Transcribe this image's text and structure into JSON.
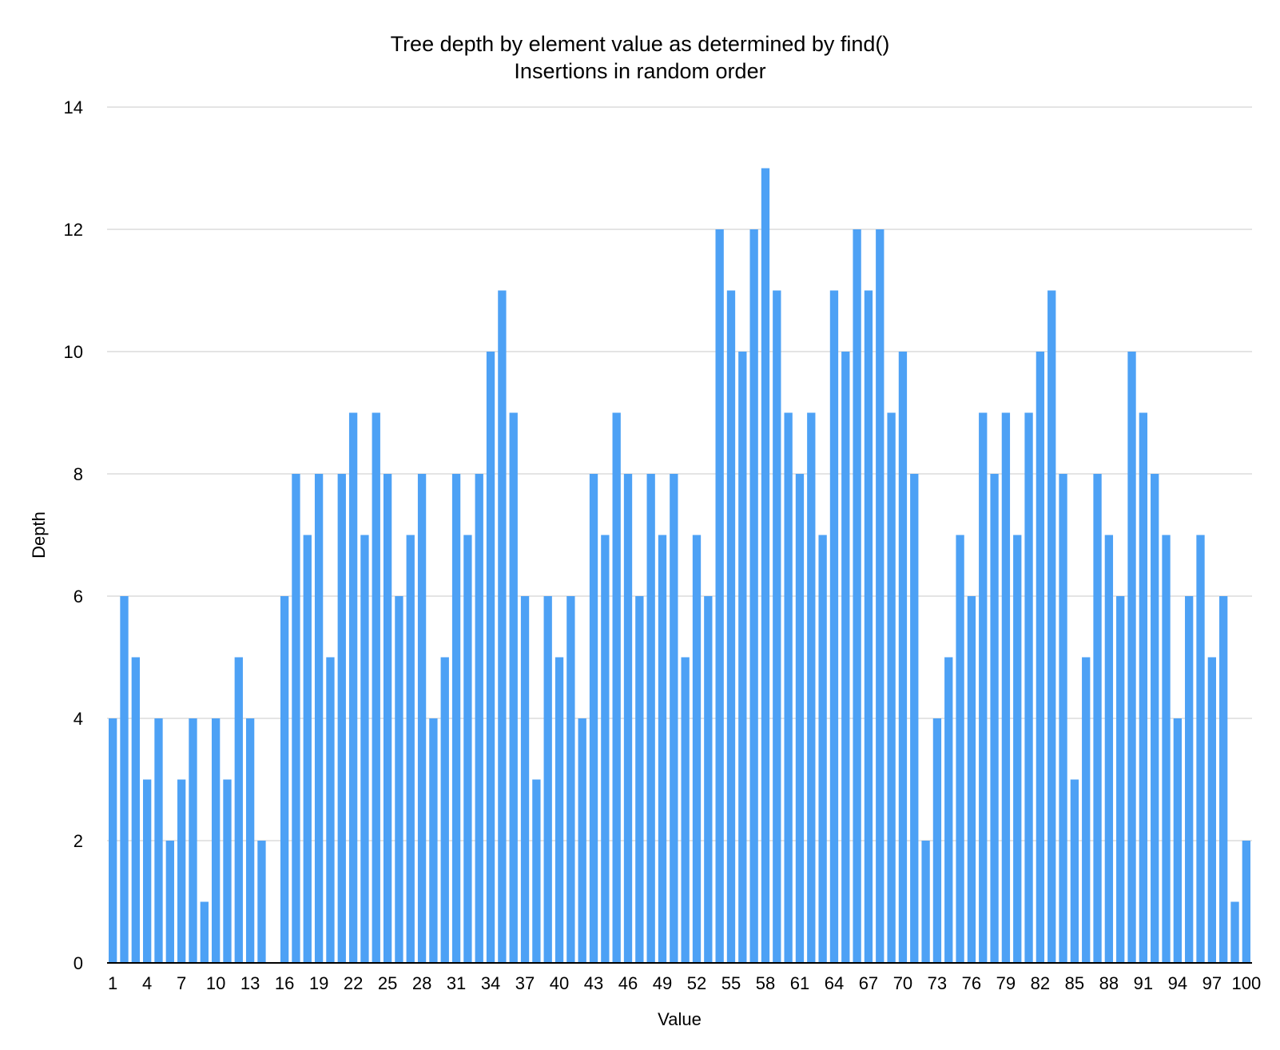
{
  "chart_data": {
    "type": "bar",
    "title": "Tree depth by element value as determined by find()",
    "subtitle": "Insertions in random order",
    "xlabel": "Value",
    "ylabel": "Depth",
    "ylim": [
      0,
      14
    ],
    "yticks": [
      0,
      2,
      4,
      6,
      8,
      10,
      12,
      14
    ],
    "xtick_labels": [
      1,
      4,
      7,
      10,
      13,
      16,
      19,
      22,
      25,
      28,
      31,
      34,
      37,
      40,
      43,
      46,
      49,
      52,
      55,
      58,
      61,
      64,
      67,
      70,
      73,
      76,
      79,
      82,
      85,
      88,
      91,
      94,
      97,
      100
    ],
    "grid": true,
    "bar_color": "#4da1f5",
    "categories": [
      1,
      2,
      3,
      4,
      5,
      6,
      7,
      8,
      9,
      10,
      11,
      12,
      13,
      14,
      15,
      16,
      17,
      18,
      19,
      20,
      21,
      22,
      23,
      24,
      25,
      26,
      27,
      28,
      29,
      30,
      31,
      32,
      33,
      34,
      35,
      36,
      37,
      38,
      39,
      40,
      41,
      42,
      43,
      44,
      45,
      46,
      47,
      48,
      49,
      50,
      51,
      52,
      53,
      54,
      55,
      56,
      57,
      58,
      59,
      60,
      61,
      62,
      63,
      64,
      65,
      66,
      67,
      68,
      69,
      70,
      71,
      72,
      73,
      74,
      75,
      76,
      77,
      78,
      79,
      80,
      81,
      82,
      83,
      84,
      85,
      86,
      87,
      88,
      89,
      90,
      91,
      92,
      93,
      94,
      95,
      96,
      97,
      98,
      99,
      100
    ],
    "values": [
      4,
      6,
      5,
      3,
      4,
      2,
      3,
      4,
      1,
      4,
      3,
      5,
      4,
      2,
      0,
      6,
      8,
      7,
      8,
      5,
      8,
      9,
      7,
      9,
      8,
      6,
      7,
      8,
      4,
      5,
      8,
      7,
      8,
      10,
      11,
      9,
      6,
      3,
      6,
      5,
      6,
      4,
      8,
      7,
      9,
      8,
      6,
      8,
      7,
      8,
      5,
      7,
      6,
      12,
      11,
      10,
      12,
      13,
      11,
      9,
      8,
      9,
      7,
      11,
      10,
      12,
      11,
      12,
      9,
      10,
      8,
      2,
      4,
      5,
      7,
      6,
      9,
      8,
      9,
      7,
      9,
      10,
      11,
      8,
      3,
      5,
      8,
      7,
      6,
      10,
      9,
      8,
      7,
      4,
      6,
      7,
      5,
      6,
      1,
      2
    ]
  }
}
